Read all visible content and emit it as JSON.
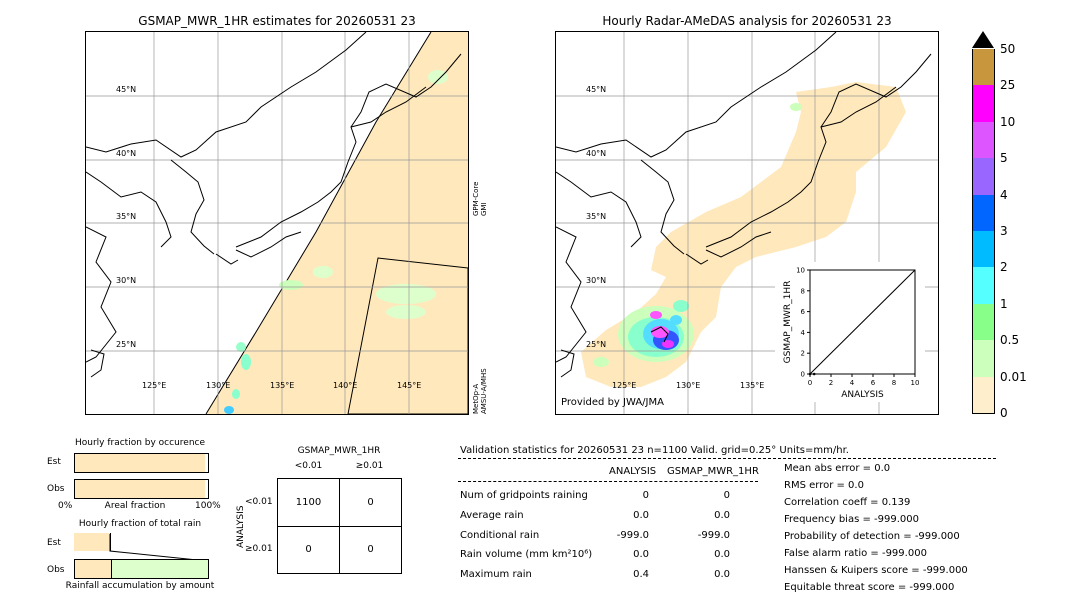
{
  "left_map": {
    "title": "GSMAP_MWR_1HR estimates for 20260531 23",
    "lat_labels": [
      "45°N",
      "40°N",
      "35°N",
      "30°N",
      "25°N"
    ],
    "lon_labels": [
      "125°E",
      "130°E",
      "135°E",
      "140°E",
      "145°E"
    ],
    "swath_label_top": "GPM-Core GMI",
    "swath_label_bottom": "MetOp-A AMSU-A/MHS"
  },
  "right_map": {
    "title": "Hourly Radar-AMeDAS analysis for 20260531 23",
    "lat_labels": [
      "45°N",
      "40°N",
      "35°N",
      "30°N",
      "25°N"
    ],
    "lon_labels": [
      "125°E",
      "130°E",
      "135°E"
    ],
    "credit": "Provided by JWA/JMA"
  },
  "colorbar": {
    "labels": [
      "50",
      "25",
      "10",
      "5",
      "4",
      "3",
      "2",
      "1",
      "0.5",
      "0.01",
      "0"
    ],
    "colors": [
      "#c8963c",
      "#ff00ff",
      "#dd55ff",
      "#9966ff",
      "#0066ff",
      "#00bbff",
      "#55ffff",
      "#88ff88",
      "#ccffbb",
      "#ffeecc"
    ]
  },
  "chart_data": [
    {
      "type": "scatter",
      "title": "",
      "xlabel": "ANALYSIS",
      "ylabel": "GSMAP_MWR_1HR",
      "xlim": [
        0,
        10
      ],
      "ylim": [
        0,
        10
      ],
      "x_ticks": [
        "0",
        "2",
        "4",
        "6",
        "8",
        "10"
      ],
      "y_ticks": [
        "0",
        "2",
        "4",
        "6",
        "8",
        "10"
      ],
      "points": [
        {
          "x": 0.0,
          "y": 0.0
        },
        {
          "x": 0.4,
          "y": 0.0
        }
      ],
      "reference_line": [
        [
          0,
          0
        ],
        [
          10,
          10
        ]
      ]
    },
    {
      "type": "bar",
      "title": "Hourly fraction by occurence",
      "categories": [
        "Est",
        "Obs"
      ],
      "values": [
        0.98,
        0.98
      ],
      "xlabel": "Areal fraction",
      "x_ticks": [
        "0%",
        "100%"
      ]
    },
    {
      "type": "bar",
      "title": "Hourly fraction of total rain",
      "categories": [
        "Est",
        "Obs"
      ],
      "values": [
        0.27,
        0.27
      ],
      "xlabel": "Rainfall accumulation by amount"
    },
    {
      "type": "table",
      "title": "GSMAP_MWR_1HR",
      "col_headers": [
        "<0.01",
        "≥0.01"
      ],
      "row_headers": [
        "<0.01",
        "≥0.01"
      ],
      "row_axis_label": "ANALYSIS",
      "cells": [
        [
          "1100",
          "0"
        ],
        [
          "0",
          "0"
        ]
      ]
    }
  ],
  "validation": {
    "header": "Validation statistics for 20260531 23  n=1100 Valid. grid=0.25° Units=mm/hr.",
    "col_analysis": "ANALYSIS",
    "col_gsmap": "GSMAP_MWR_1HR",
    "rows": [
      {
        "label": "Num of gridpoints raining",
        "analysis": "0",
        "gsmap": "0"
      },
      {
        "label": "Average rain",
        "analysis": "0.0",
        "gsmap": "0.0"
      },
      {
        "label": "Conditional rain",
        "analysis": "-999.0",
        "gsmap": "-999.0"
      },
      {
        "label": "Rain volume (mm km²10⁶)",
        "analysis": "0.0",
        "gsmap": "0.0"
      },
      {
        "label": "Maximum rain",
        "analysis": "0.4",
        "gsmap": "0.0"
      }
    ],
    "scores": [
      "Mean abs error =    0.0",
      "RMS error =    0.0",
      "Correlation coeff =  0.139",
      "Frequency bias = -999.000",
      "Probability of detection = -999.000",
      "False alarm ratio = -999.000",
      "Hanssen & Kuipers score = -999.000",
      "Equitable threat score = -999.000"
    ]
  }
}
